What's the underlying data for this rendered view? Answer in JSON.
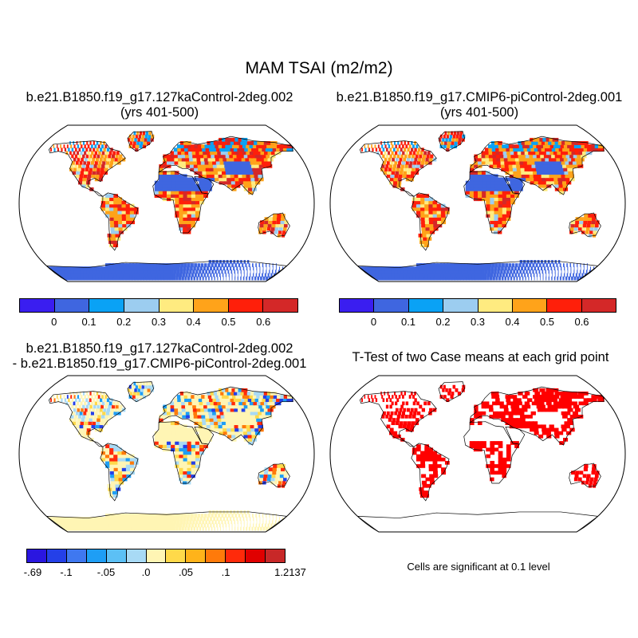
{
  "chart_data": {
    "type": "heatmap",
    "title": "MAM TSAI (m2/m2)",
    "panels": [
      {
        "id": "case1",
        "title_line1": "b.e21.B1850.f19_g17.127kaControl-2deg.002",
        "title_line2": "(yrs 401-500)",
        "colorbar": {
          "colors": [
            "#3a1ef0",
            "#3f66e0",
            "#0aa2f5",
            "#9ccdf0",
            "#ffeb80",
            "#ffa31a",
            "#ff1f0a",
            "#d42828"
          ],
          "tick_labels": [
            "0",
            "0.1",
            "0.2",
            "0.3",
            "0.4",
            "0.5",
            "0.6"
          ]
        }
      },
      {
        "id": "case2",
        "title_line1": "b.e21.B1850.f19_g17.CMIP6-piControl-2deg.001",
        "title_line2": "(yrs 401-500)",
        "colorbar": {
          "colors": [
            "#3a1ef0",
            "#3f66e0",
            "#0aa2f5",
            "#9ccdf0",
            "#ffeb80",
            "#ffa31a",
            "#ff1f0a",
            "#d42828"
          ],
          "tick_labels": [
            "0",
            "0.1",
            "0.2",
            "0.3",
            "0.4",
            "0.5",
            "0.6"
          ]
        }
      },
      {
        "id": "difference",
        "title_line1": "b.e21.B1850.f19_g17.127kaControl-2deg.002",
        "title_line2": "- b.e21.B1850.f19_g17.CMIP6-piControl-2deg.001",
        "colorbar": {
          "colors": [
            "#2a16e0",
            "#2440e8",
            "#3f78f0",
            "#1e9ef5",
            "#5cc0f5",
            "#a8daf5",
            "#fff5b4",
            "#ffd94a",
            "#ffb31a",
            "#ff7a0a",
            "#ff2a0a",
            "#e00000",
            "#c82828"
          ],
          "tick_labels": [
            "-.69",
            "-.1",
            "-.05",
            ".0",
            ".05",
            ".1",
            "1.2137"
          ]
        }
      },
      {
        "id": "ttest",
        "title_line1": "T-Test of two Case means at each grid point",
        "note": "Cells are significant at 0.1 level",
        "significant_color": "#ff0000"
      }
    ]
  }
}
